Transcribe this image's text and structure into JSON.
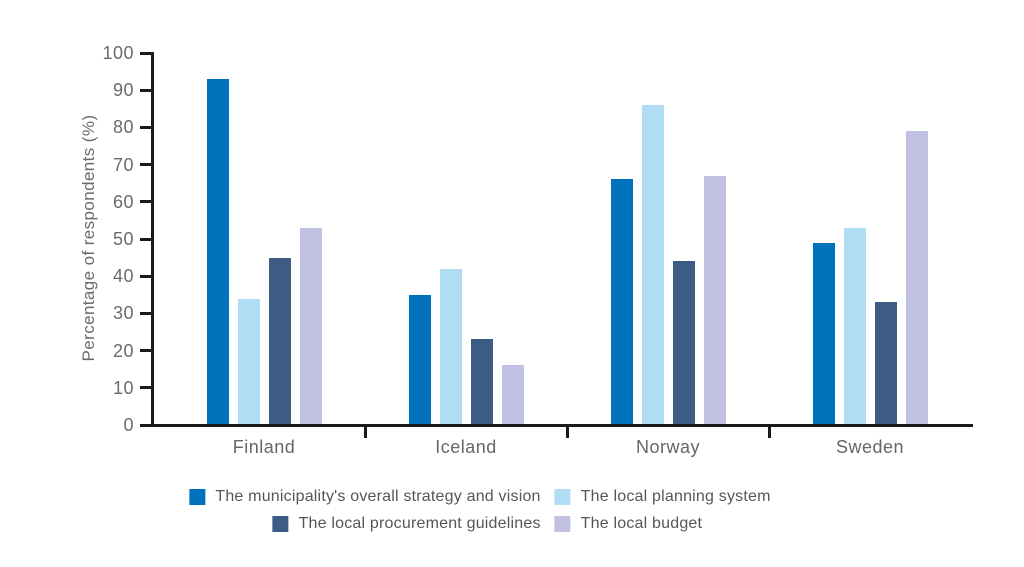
{
  "chart_data": {
    "type": "bar",
    "title": "",
    "xlabel": "",
    "ylabel": "Percentage of respondents (%)",
    "ylim": [
      0,
      100
    ],
    "yticks": [
      0,
      10,
      20,
      30,
      40,
      50,
      60,
      70,
      80,
      90,
      100
    ],
    "grid": false,
    "legend_position": "bottom",
    "categories": [
      "Finland",
      "Iceland",
      "Norway",
      "Sweden"
    ],
    "series": [
      {
        "name": "The municipality's overall strategy and vision",
        "color": "#0072BC",
        "values": [
          93,
          35,
          66,
          49
        ]
      },
      {
        "name": "The local planning system",
        "color": "#B0DCF4",
        "values": [
          34,
          42,
          86,
          53
        ]
      },
      {
        "name": "The local procurement guidelines",
        "color": "#3C5C86",
        "values": [
          45,
          23,
          44,
          33
        ]
      },
      {
        "name": "The local budget",
        "color": "#C0C1E3",
        "values": [
          53,
          16,
          67,
          79
        ]
      }
    ]
  },
  "colors": {
    "axis": "#1a1a1a",
    "tick_label": "#6b6b6b",
    "category_label": "#666666",
    "legend_text": "#565656",
    "background": "#ffffff"
  }
}
